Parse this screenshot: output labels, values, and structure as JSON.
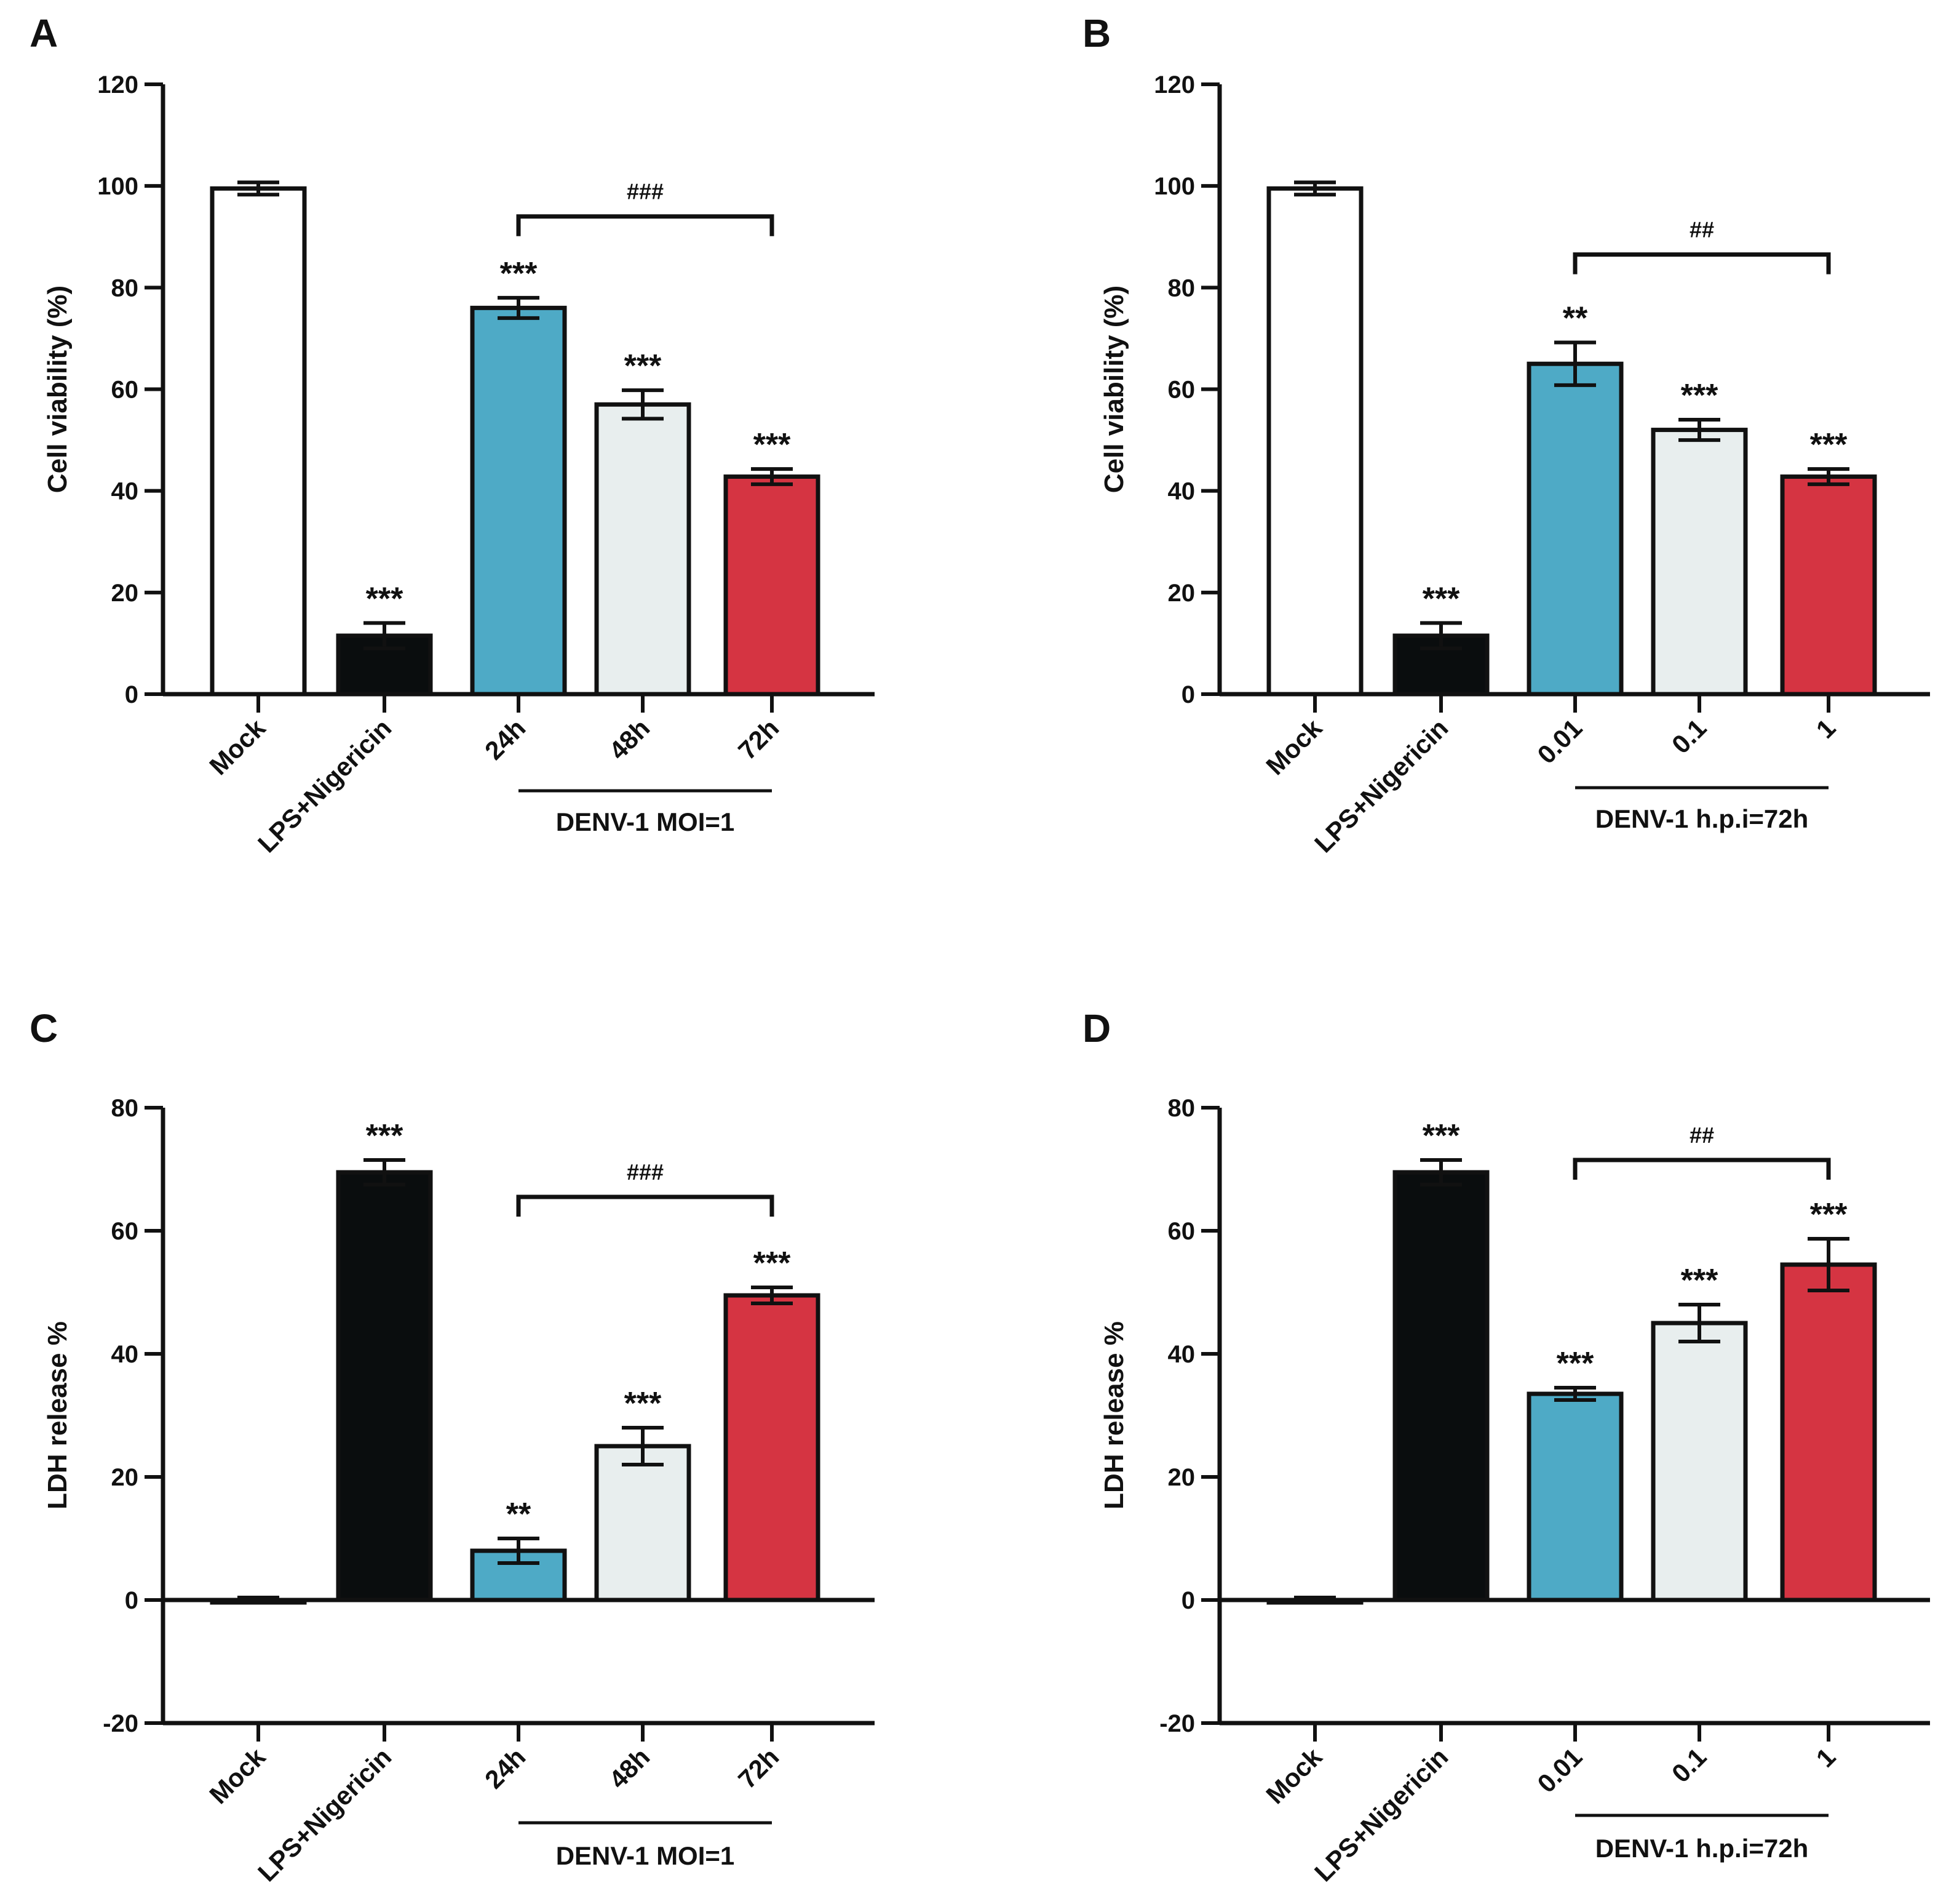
{
  "colors": {
    "Mock": "#ffffff",
    "LPS+Nigericin": "#0a0d0e",
    "c3": "#4eaac6",
    "c4": "#e8eeee",
    "c5": "#d53442",
    "stroke": "#111111"
  },
  "chart_data": [
    {
      "panel": "A",
      "type": "bar",
      "ylabel": "Cell viability (%)",
      "ylim": [
        0,
        120
      ],
      "yticks": [
        0,
        20,
        40,
        60,
        80,
        100,
        120
      ],
      "categories": [
        "Mock",
        "LPS+Nigericin",
        "24h",
        "48h",
        "72h"
      ],
      "values": [
        99.5,
        11.5,
        76,
        57,
        42.8
      ],
      "errors": [
        1.2,
        2.5,
        2.0,
        2.8,
        1.5
      ],
      "significance": [
        "",
        "***",
        "***",
        "***",
        "***"
      ],
      "group_label": "DENV-1 MOI=1",
      "bracket": {
        "from": 2,
        "to": 4,
        "label": "###",
        "y": 94
      }
    },
    {
      "panel": "B",
      "type": "bar",
      "ylabel": "Cell viability (%)",
      "ylim": [
        0,
        120
      ],
      "yticks": [
        0,
        20,
        40,
        60,
        80,
        100,
        120
      ],
      "categories": [
        "Mock",
        "LPS+Nigericin",
        "0.01",
        "0.1",
        "1"
      ],
      "values": [
        99.5,
        11.5,
        65,
        52,
        42.8
      ],
      "errors": [
        1.2,
        2.5,
        4.2,
        2.0,
        1.5
      ],
      "significance": [
        "",
        "***",
        "**",
        "***",
        "***"
      ],
      "group_label": "DENV-1 h.p.i=72h",
      "bracket": {
        "from": 2,
        "to": 4,
        "label": "##",
        "y": 86.5
      }
    },
    {
      "panel": "C",
      "type": "bar",
      "ylabel": "LDH release %",
      "ylim": [
        -20,
        80
      ],
      "yticks": [
        -20,
        0,
        20,
        40,
        60,
        80
      ],
      "categories": [
        "Mock",
        "LPS+Nigericin",
        "24h",
        "48h",
        "72h"
      ],
      "values": [
        0,
        69.5,
        8,
        25,
        49.5
      ],
      "errors": [
        0.4,
        2.0,
        2.0,
        3.0,
        1.3
      ],
      "significance": [
        "",
        "***",
        "**",
        "***",
        "***"
      ],
      "group_label": "DENV-1 MOI=1",
      "bracket": {
        "from": 2,
        "to": 4,
        "label": "###",
        "y": 65.5
      }
    },
    {
      "panel": "D",
      "type": "bar",
      "ylabel": "LDH release %",
      "ylim": [
        -20,
        80
      ],
      "yticks": [
        -20,
        0,
        20,
        40,
        60,
        80
      ],
      "categories": [
        "Mock",
        "LPS+Nigericin",
        "0.01",
        "0.1",
        "1"
      ],
      "values": [
        0,
        69.5,
        33.5,
        45,
        54.5
      ],
      "errors": [
        0.4,
        2.0,
        1.0,
        3.0,
        4.2
      ],
      "significance": [
        "",
        "***",
        "***",
        "***",
        "***"
      ],
      "group_label": "DENV-1 h.p.i=72h",
      "bracket": {
        "from": 2,
        "to": 4,
        "label": "##",
        "y": 71.5
      }
    }
  ]
}
